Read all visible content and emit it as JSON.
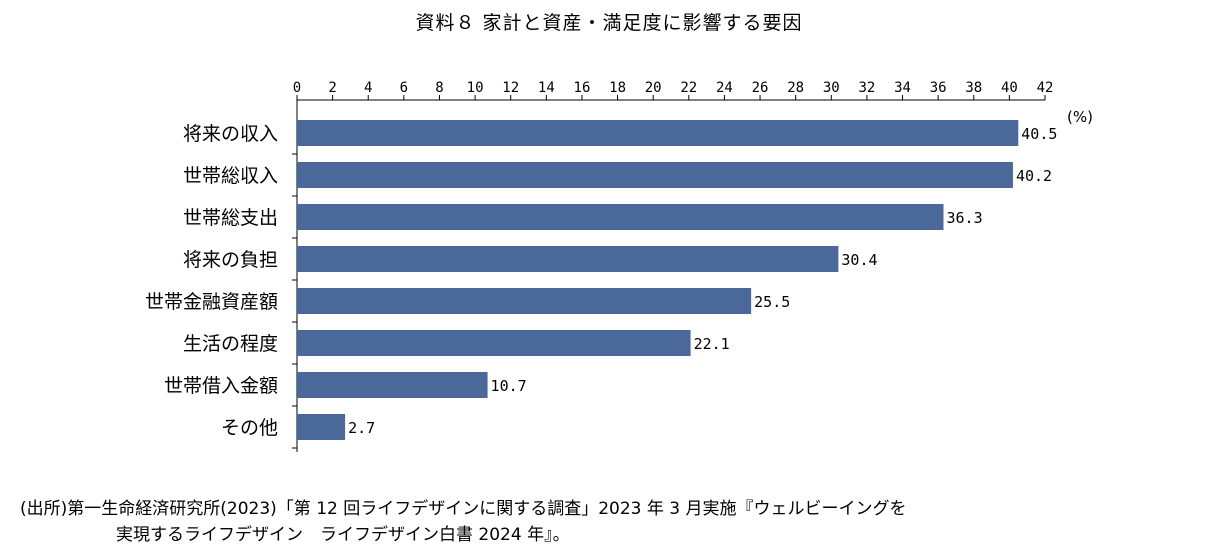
{
  "chart_data": {
    "type": "bar",
    "orientation": "horizontal",
    "title": "資料８ 家計と資産・満足度に影響する要因",
    "unit_label": "(%)",
    "xlim": [
      0,
      42
    ],
    "x_ticks": [
      0,
      2,
      4,
      6,
      8,
      10,
      12,
      14,
      16,
      18,
      20,
      22,
      24,
      26,
      28,
      30,
      32,
      34,
      36,
      38,
      40,
      42
    ],
    "categories": [
      "将来の収入",
      "世帯総収入",
      "世帯総支出",
      "将来の負担",
      "世帯金融資産額",
      "生活の程度",
      "世帯借入金額",
      "その他"
    ],
    "values": [
      40.5,
      40.2,
      36.3,
      30.4,
      25.5,
      22.1,
      10.7,
      2.7
    ],
    "value_labels": [
      "40.5",
      "40.2",
      "36.3",
      "30.4",
      "25.5",
      "22.1",
      "10.7",
      "2.7"
    ],
    "bar_color": "#4a6899",
    "grid": false
  },
  "source": {
    "line1": "(出所)第一生命経済研究所(2023)「第 12 回ライフデザインに関する調査」2023 年 3 月実施『ウェルビーイングを",
    "line2": "実現するライフデザイン　ライフデザイン白書 2024 年』。"
  }
}
